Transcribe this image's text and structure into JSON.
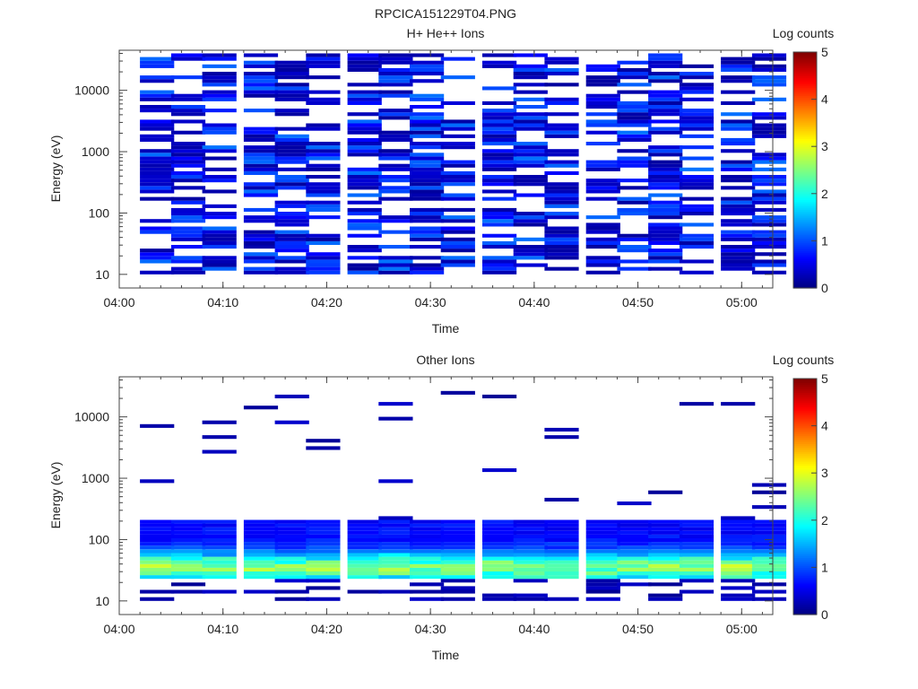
{
  "figure_title": "RPCICA151229T04.PNG",
  "colors": {
    "colormap": [
      "#00007f",
      "#0000ff",
      "#007fff",
      "#00ffff",
      "#7fff7f",
      "#ffff00",
      "#ff7f00",
      "#ff0000",
      "#7f0000"
    ]
  },
  "chart_data": [
    {
      "type": "heatmap",
      "title": "H+ He++ Ions",
      "xlabel": "Time",
      "ylabel": "Energy (eV)",
      "colorbar_label": "Log counts",
      "x_range": [
        "04:00",
        "05:03"
      ],
      "x_ticks": [
        "04:00",
        "04:10",
        "04:20",
        "04:30",
        "04:40",
        "04:50",
        "05:00"
      ],
      "y_scale": "log",
      "y_range": [
        6,
        45000
      ],
      "y_ticks": [
        "10",
        "100",
        "1000",
        "10000"
      ],
      "color_range": [
        0,
        5
      ],
      "colorbar_ticks": [
        "0",
        "1",
        "2",
        "3",
        "4",
        "5"
      ],
      "time_bin_starts": [
        "04:02",
        "04:05",
        "04:08",
        "04:12",
        "04:15",
        "04:18",
        "04:22",
        "04:25",
        "04:28",
        "04:31",
        "04:35",
        "04:38",
        "04:41",
        "04:45",
        "04:48",
        "04:51",
        "04:54",
        "04:58",
        "05:01"
      ],
      "description": "Sparse spectrogram: most bins between ~10 eV and 40000 eV show low log counts (0-1), with scattered empty energy channels."
    },
    {
      "type": "heatmap",
      "title": "Other Ions",
      "xlabel": "Time",
      "ylabel": "Energy (eV)",
      "colorbar_label": "Log counts",
      "x_range": [
        "04:00",
        "05:03"
      ],
      "x_ticks": [
        "04:00",
        "04:10",
        "04:20",
        "04:30",
        "04:40",
        "04:50",
        "05:00"
      ],
      "y_scale": "log",
      "y_range": [
        6,
        45000
      ],
      "y_ticks": [
        "10",
        "100",
        "1000",
        "10000"
      ],
      "color_range": [
        0,
        5
      ],
      "colorbar_ticks": [
        "0",
        "1",
        "2",
        "3",
        "4",
        "5"
      ],
      "time_bin_starts": [
        "04:02",
        "04:05",
        "04:08",
        "04:12",
        "04:15",
        "04:18",
        "04:22",
        "04:25",
        "04:28",
        "04:31",
        "04:35",
        "04:38",
        "04:41",
        "04:45",
        "04:48",
        "04:51",
        "04:54",
        "04:58",
        "05:01"
      ],
      "description": "Persistent band between ~25 and 200 eV with log counts up to ~2.5 peaking near 30-40 eV; isolated low-count bins above 1000 eV."
    }
  ]
}
